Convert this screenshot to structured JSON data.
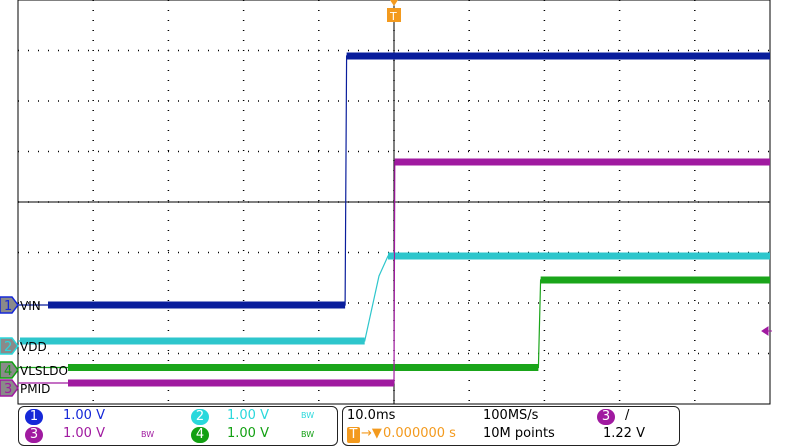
{
  "chart_data": {
    "type": "line",
    "title": "",
    "x_unit": "ms",
    "xlim": [
      -50,
      50
    ],
    "x_div": "10.0ms",
    "grid": true,
    "series": [
      {
        "name": "VIN",
        "channel": "1",
        "color": "#0a1e9c",
        "x": [
          -50,
          -6.5,
          -6.3,
          50
        ],
        "y": [
          0,
          0,
          4.98,
          4.98
        ]
      },
      {
        "name": "VDD",
        "channel": "2",
        "color": "#2ec6cc",
        "x": [
          -50,
          -3.9,
          -2.0,
          -0.8,
          50
        ],
        "y": [
          0.1,
          0.1,
          1.4,
          1.8,
          1.8
        ]
      },
      {
        "name": "VLSLDO",
        "channel": "4",
        "color": "#1aa51a",
        "x": [
          -50,
          19.2,
          19.5,
          50
        ],
        "y": [
          0.05,
          0.05,
          1.8,
          1.8
        ]
      },
      {
        "name": "PMID",
        "channel": "3",
        "color": "#a01aa0",
        "x": [
          -50,
          0,
          0.1,
          50
        ],
        "y": [
          0.1,
          0.1,
          4.52,
          4.52
        ]
      }
    ]
  },
  "channels": [
    {
      "num": "1",
      "scale": "1.00 V",
      "bw": "",
      "color": "#1528d8"
    },
    {
      "num": "2",
      "scale": "1.00 V",
      "bw": "BW",
      "color": "#2ad8dc"
    },
    {
      "num": "3",
      "scale": "1.00 V",
      "bw": "BW",
      "color": "#a01aa0"
    },
    {
      "num": "4",
      "scale": "1.00 V",
      "bw": "BW",
      "color": "#12a012"
    }
  ],
  "timebase": {
    "scale": "10.0ms",
    "sample_rate": "100MS/s",
    "points": "10M points",
    "trigger_pos": "0.000000 s",
    "trigger_icon": "T"
  },
  "trigger": {
    "source": "3",
    "slope": "/",
    "level": "1.22 V"
  }
}
